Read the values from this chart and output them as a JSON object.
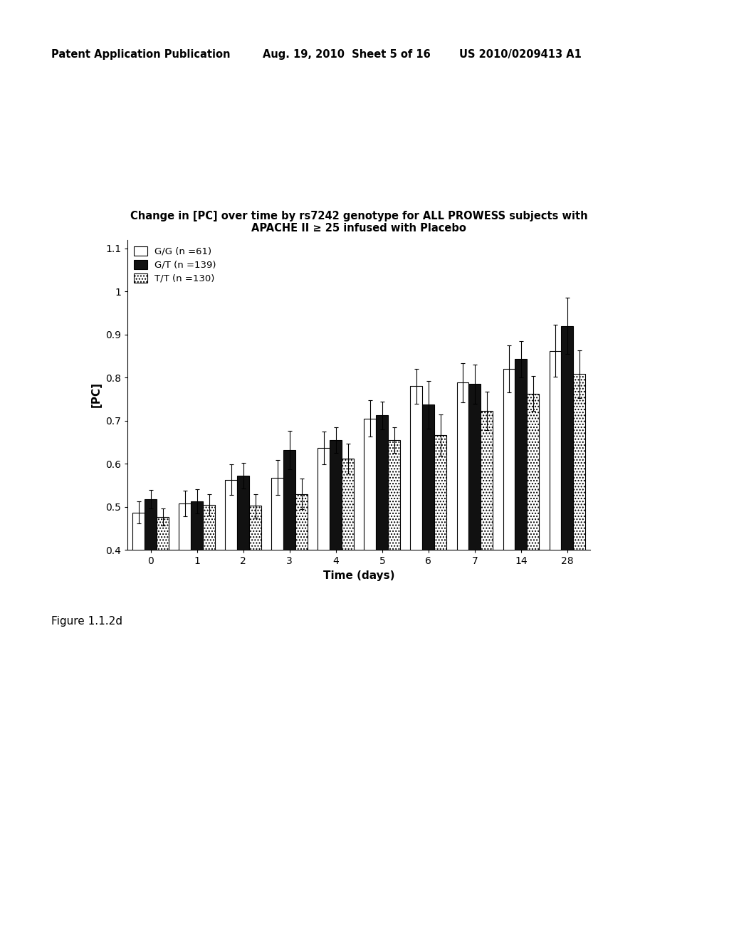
{
  "title_line1": "Change in [PC] over time by rs7242 genotype for ALL PROWESS subjects with",
  "title_line2": "APACHE II ≥ 25 infused with Placebo",
  "xlabel": "Time (days)",
  "ylabel": "[PC]",
  "time_points": [
    0,
    1,
    2,
    3,
    4,
    5,
    6,
    7,
    14,
    28
  ],
  "ylim": [
    0.4,
    1.1
  ],
  "yticks": [
    0.4,
    0.5,
    0.6,
    0.7,
    0.8,
    0.9,
    1.0,
    1.1
  ],
  "legend_labels": [
    "G/G (n =61)",
    "G/T (n =139)",
    "T/T (n =130)"
  ],
  "GG_means": [
    0.487,
    0.508,
    0.563,
    0.568,
    0.637,
    0.705,
    0.78,
    0.788,
    0.82,
    0.862
  ],
  "GT_means": [
    0.518,
    0.513,
    0.572,
    0.632,
    0.655,
    0.712,
    0.737,
    0.785,
    0.843,
    0.92
  ],
  "TT_means": [
    0.477,
    0.505,
    0.502,
    0.53,
    0.612,
    0.655,
    0.667,
    0.723,
    0.763,
    0.808
  ],
  "GG_errors": [
    0.025,
    0.03,
    0.035,
    0.04,
    0.038,
    0.042,
    0.04,
    0.045,
    0.055,
    0.06
  ],
  "GT_errors": [
    0.022,
    0.028,
    0.03,
    0.045,
    0.03,
    0.032,
    0.055,
    0.045,
    0.042,
    0.065
  ],
  "TT_errors": [
    0.02,
    0.025,
    0.028,
    0.035,
    0.035,
    0.03,
    0.048,
    0.045,
    0.04,
    0.055
  ],
  "header_left": "Patent Application Publication",
  "header_mid": "Aug. 19, 2010  Sheet 5 of 16",
  "header_right": "US 2010/0209413 A1",
  "figure_label": "Figure 1.1.2d",
  "background_color": "#ffffff",
  "bar_width": 0.26
}
